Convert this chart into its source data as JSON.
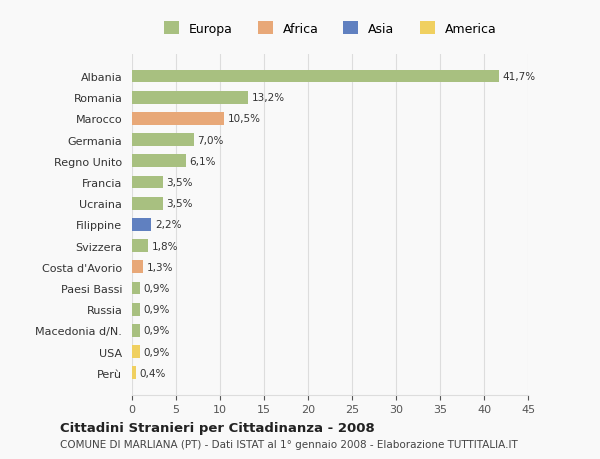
{
  "categories": [
    "Albania",
    "Romania",
    "Marocco",
    "Germania",
    "Regno Unito",
    "Francia",
    "Ucraina",
    "Filippine",
    "Svizzera",
    "Costa d'Avorio",
    "Paesi Bassi",
    "Russia",
    "Macedonia d/N.",
    "USA",
    "Perù"
  ],
  "values": [
    41.7,
    13.2,
    10.5,
    7.0,
    6.1,
    3.5,
    3.5,
    2.2,
    1.8,
    1.3,
    0.9,
    0.9,
    0.9,
    0.9,
    0.4
  ],
  "labels": [
    "41,7%",
    "13,2%",
    "10,5%",
    "7,0%",
    "6,1%",
    "3,5%",
    "3,5%",
    "2,2%",
    "1,8%",
    "1,3%",
    "0,9%",
    "0,9%",
    "0,9%",
    "0,9%",
    "0,4%"
  ],
  "continents": [
    "Europa",
    "Europa",
    "Africa",
    "Europa",
    "Europa",
    "Europa",
    "Europa",
    "Asia",
    "Europa",
    "Africa",
    "Europa",
    "Europa",
    "Europa",
    "America",
    "America"
  ],
  "colors": {
    "Europa": "#a8c080",
    "Africa": "#e8a878",
    "Asia": "#6080c0",
    "America": "#f0d060"
  },
  "legend_order": [
    "Europa",
    "Africa",
    "Asia",
    "America"
  ],
  "xlim": [
    0,
    45
  ],
  "xticks": [
    0,
    5,
    10,
    15,
    20,
    25,
    30,
    35,
    40,
    45
  ],
  "title": "Cittadini Stranieri per Cittadinanza - 2008",
  "subtitle": "COMUNE DI MARLIANA (PT) - Dati ISTAT al 1° gennaio 2008 - Elaborazione TUTTITALIA.IT",
  "background_color": "#f9f9f9",
  "grid_color": "#dddddd",
  "bar_height": 0.6
}
